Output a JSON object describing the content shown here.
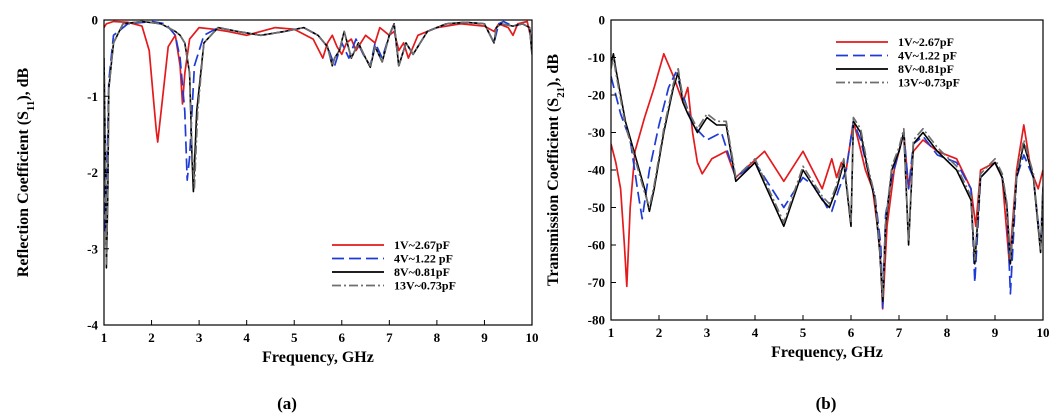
{
  "panel_labels": [
    "(a)",
    "(b)"
  ],
  "chart_data": [
    {
      "type": "line",
      "xlabel": "Frequency, GHz",
      "ylabel_main": "Reflection Coefficient (S",
      "ylabel_sub": "11",
      "ylabel_tail": "), dB",
      "xlim": [
        1,
        10
      ],
      "ylim": [
        -4,
        0
      ],
      "xticks": [
        1,
        2,
        3,
        4,
        5,
        6,
        7,
        8,
        9,
        10
      ],
      "yticks": [
        -4,
        -3,
        -2,
        -1,
        0
      ],
      "legend_position": "bottom-right",
      "series": [
        {
          "name": "1V~2.67pF",
          "color": "#e41a1c",
          "dash": "solid",
          "x": [
            1.0,
            1.05,
            1.2,
            1.5,
            1.8,
            1.95,
            2.05,
            2.1,
            2.13,
            2.2,
            2.35,
            2.5,
            2.6,
            2.65,
            2.7,
            2.8,
            3.0,
            3.3,
            3.6,
            4.0,
            4.3,
            4.6,
            5.0,
            5.4,
            5.6,
            5.7,
            5.8,
            5.9,
            6.0,
            6.1,
            6.2,
            6.3,
            6.5,
            6.7,
            6.8,
            7.0,
            7.1,
            7.2,
            7.3,
            7.4,
            7.6,
            8.0,
            8.5,
            9.0,
            9.2,
            9.3,
            9.5,
            9.6,
            9.7,
            9.9,
            10.0
          ],
          "y": [
            -0.1,
            -0.05,
            -0.02,
            -0.03,
            -0.08,
            -0.4,
            -1.1,
            -1.45,
            -1.6,
            -1.2,
            -0.35,
            -0.2,
            -0.6,
            -1.1,
            -0.7,
            -0.25,
            -0.1,
            -0.12,
            -0.15,
            -0.2,
            -0.15,
            -0.1,
            -0.12,
            -0.25,
            -0.5,
            -0.3,
            -0.2,
            -0.35,
            -0.45,
            -0.3,
            -0.25,
            -0.4,
            -0.2,
            -0.3,
            -0.1,
            -0.2,
            -0.15,
            -0.4,
            -0.3,
            -0.5,
            -0.2,
            -0.1,
            -0.05,
            -0.08,
            -0.15,
            -0.05,
            -0.1,
            -0.2,
            -0.05,
            -0.02,
            -0.3
          ]
        },
        {
          "name": "4V~1.22 pF",
          "color": "#1f3bd6",
          "dash": "long",
          "x": [
            1.0,
            1.03,
            1.07,
            1.1,
            1.2,
            1.5,
            2.0,
            2.3,
            2.5,
            2.6,
            2.7,
            2.75,
            2.8,
            2.9,
            3.1,
            3.4,
            3.8,
            4.3,
            4.8,
            5.2,
            5.5,
            5.7,
            5.85,
            6.0,
            6.15,
            6.3,
            6.45,
            6.6,
            6.7,
            6.85,
            7.0,
            7.1,
            7.2,
            7.35,
            7.5,
            7.8,
            8.2,
            8.6,
            9.0,
            9.2,
            9.3,
            9.4,
            9.6,
            9.8,
            9.95,
            10.0
          ],
          "y": [
            -1.5,
            -2.8,
            -1.8,
            -0.8,
            -0.2,
            -0.05,
            -0.02,
            -0.05,
            -0.2,
            -0.5,
            -1.2,
            -2.1,
            -1.8,
            -0.6,
            -0.2,
            -0.1,
            -0.15,
            -0.2,
            -0.15,
            -0.1,
            -0.2,
            -0.35,
            -0.6,
            -0.3,
            -0.5,
            -0.25,
            -0.45,
            -0.6,
            -0.3,
            -0.5,
            -0.2,
            -0.05,
            -0.6,
            -0.3,
            -0.45,
            -0.15,
            -0.05,
            -0.03,
            -0.05,
            -0.3,
            -0.05,
            -0.02,
            -0.08,
            -0.05,
            -0.1,
            -0.4
          ]
        },
        {
          "name": "8V~0.81pF",
          "color": "#000000",
          "dash": "solid",
          "x": [
            1.0,
            1.03,
            1.05,
            1.08,
            1.1,
            1.2,
            1.4,
            1.8,
            2.2,
            2.5,
            2.6,
            2.7,
            2.8,
            2.85,
            2.88,
            2.95,
            3.1,
            3.4,
            3.8,
            4.3,
            4.8,
            5.2,
            5.5,
            5.7,
            5.8,
            5.85,
            5.95,
            6.05,
            6.2,
            6.35,
            6.5,
            6.6,
            6.7,
            6.85,
            7.0,
            7.1,
            7.2,
            7.35,
            7.5,
            7.8,
            8.2,
            8.6,
            9.0,
            9.2,
            9.25,
            9.35,
            9.6,
            9.8,
            9.95,
            10.0
          ],
          "y": [
            -0.5,
            -1.8,
            -3.25,
            -2.3,
            -0.9,
            -0.3,
            -0.05,
            -0.02,
            -0.05,
            -0.15,
            -0.2,
            -0.3,
            -0.7,
            -1.8,
            -2.25,
            -1.2,
            -0.3,
            -0.1,
            -0.15,
            -0.2,
            -0.15,
            -0.1,
            -0.2,
            -0.35,
            -0.6,
            -0.5,
            -0.4,
            -0.15,
            -0.5,
            -0.3,
            -0.5,
            -0.62,
            -0.35,
            -0.55,
            -0.2,
            -0.05,
            -0.6,
            -0.3,
            -0.45,
            -0.15,
            -0.05,
            -0.03,
            -0.05,
            -0.3,
            -0.1,
            -0.05,
            -0.08,
            -0.05,
            -0.1,
            -0.45
          ]
        },
        {
          "name": "13V~0.73pF",
          "color": "#6e6e6e",
          "dash": "dashdot",
          "x": [
            1.0,
            1.03,
            1.05,
            1.08,
            1.1,
            1.2,
            1.4,
            1.8,
            2.2,
            2.5,
            2.6,
            2.7,
            2.8,
            2.85,
            2.9,
            2.97,
            3.1,
            3.4,
            3.8,
            4.3,
            4.8,
            5.2,
            5.5,
            5.7,
            5.8,
            5.85,
            5.95,
            6.05,
            6.2,
            6.35,
            6.5,
            6.6,
            6.7,
            6.85,
            7.0,
            7.1,
            7.2,
            7.35,
            7.5,
            7.8,
            8.2,
            8.6,
            9.0,
            9.2,
            9.25,
            9.35,
            9.6,
            9.8,
            9.95,
            10.0
          ],
          "y": [
            -0.5,
            -1.7,
            -3.2,
            -2.2,
            -0.9,
            -0.3,
            -0.05,
            -0.02,
            -0.05,
            -0.15,
            -0.2,
            -0.3,
            -0.7,
            -1.7,
            -2.2,
            -1.2,
            -0.3,
            -0.1,
            -0.15,
            -0.2,
            -0.15,
            -0.1,
            -0.2,
            -0.35,
            -0.6,
            -0.5,
            -0.4,
            -0.15,
            -0.5,
            -0.3,
            -0.5,
            -0.6,
            -0.35,
            -0.55,
            -0.2,
            -0.05,
            -0.6,
            -0.3,
            -0.45,
            -0.15,
            -0.05,
            -0.03,
            -0.05,
            -0.3,
            -0.1,
            -0.05,
            -0.08,
            -0.05,
            -0.1,
            -0.45
          ]
        }
      ]
    },
    {
      "type": "line",
      "xlabel": "Frequency, GHz",
      "ylabel_main": "Transmission Coefficient (S",
      "ylabel_sub": "21",
      "ylabel_tail": "), dB",
      "xlim": [
        1,
        10
      ],
      "ylim": [
        -80,
        0
      ],
      "xticks": [
        1,
        2,
        3,
        4,
        5,
        6,
        7,
        8,
        9,
        10
      ],
      "yticks": [
        0,
        -10,
        -20,
        -30,
        -40,
        -50,
        -60,
        -70,
        -80
      ],
      "legend_position": "top-right",
      "series": [
        {
          "name": "1V~2.67pF",
          "color": "#e41a1c",
          "dash": "solid",
          "x": [
            1.0,
            1.1,
            1.2,
            1.28,
            1.33,
            1.4,
            1.5,
            1.7,
            1.9,
            2.1,
            2.3,
            2.5,
            2.6,
            2.7,
            2.8,
            2.9,
            3.1,
            3.4,
            3.6,
            4.2,
            4.6,
            5.0,
            5.4,
            5.6,
            5.7,
            5.8,
            5.9,
            6.05,
            6.15,
            6.3,
            6.45,
            6.6,
            6.66,
            6.75,
            6.9,
            7.0,
            7.1,
            7.2,
            7.3,
            7.5,
            7.8,
            8.2,
            8.5,
            8.6,
            8.7,
            9.0,
            9.15,
            9.3,
            9.45,
            9.6,
            9.75,
            9.9,
            10.0
          ],
          "y": [
            -33,
            -38,
            -45,
            -60,
            -71,
            -50,
            -35,
            -26,
            -18,
            -9,
            -15,
            -22,
            -18,
            -30,
            -38,
            -41,
            -37,
            -35,
            -42,
            -35,
            -43,
            -35,
            -45,
            -37,
            -42,
            -38,
            -40,
            -27,
            -32,
            -40,
            -45,
            -60,
            -77,
            -55,
            -40,
            -35,
            -30,
            -45,
            -35,
            -32,
            -35,
            -37,
            -45,
            -55,
            -40,
            -38,
            -42,
            -65,
            -40,
            -28,
            -40,
            -45,
            -40
          ]
        },
        {
          "name": "4V~1.22 pF",
          "color": "#1f3bd6",
          "dash": "long",
          "x": [
            1.0,
            1.1,
            1.2,
            1.4,
            1.55,
            1.65,
            1.8,
            2.0,
            2.2,
            2.35,
            2.5,
            2.7,
            3.0,
            3.3,
            3.6,
            4.0,
            4.6,
            5.0,
            5.3,
            5.5,
            5.6,
            5.75,
            5.9,
            6.05,
            6.2,
            6.35,
            6.5,
            6.62,
            6.66,
            6.72,
            6.85,
            7.0,
            7.1,
            7.2,
            7.3,
            7.5,
            7.8,
            8.2,
            8.5,
            8.58,
            8.7,
            9.0,
            9.15,
            9.25,
            9.32,
            9.45,
            9.6,
            9.8,
            9.95,
            10.0
          ],
          "y": [
            -15,
            -20,
            -25,
            -32,
            -45,
            -53,
            -40,
            -28,
            -18,
            -14,
            -20,
            -28,
            -32,
            -30,
            -42,
            -38,
            -50,
            -42,
            -45,
            -50,
            -51,
            -45,
            -40,
            -27,
            -32,
            -40,
            -47,
            -60,
            -77,
            -52,
            -42,
            -35,
            -30,
            -45,
            -33,
            -31,
            -36,
            -38,
            -45,
            -70,
            -42,
            -38,
            -42,
            -50,
            -73,
            -42,
            -36,
            -42,
            -60,
            -45
          ]
        },
        {
          "name": "8V~0.81pF",
          "color": "#000000",
          "dash": "solid",
          "x": [
            1.0,
            1.05,
            1.1,
            1.2,
            1.3,
            1.5,
            1.7,
            1.8,
            1.9,
            2.1,
            2.3,
            2.4,
            2.5,
            2.6,
            2.8,
            3.0,
            3.2,
            3.4,
            3.6,
            4.0,
            4.6,
            5.0,
            5.4,
            5.55,
            5.7,
            5.85,
            6.0,
            6.05,
            6.2,
            6.35,
            6.5,
            6.6,
            6.66,
            6.72,
            6.85,
            7.0,
            7.1,
            7.2,
            7.3,
            7.5,
            7.8,
            8.2,
            8.5,
            8.58,
            8.7,
            9.0,
            9.15,
            9.25,
            9.32,
            9.45,
            9.6,
            9.8,
            9.95,
            10.0
          ],
          "y": [
            -12,
            -9,
            -13,
            -20,
            -27,
            -36,
            -45,
            -51,
            -45,
            -30,
            -18,
            -14,
            -22,
            -25,
            -30,
            -26,
            -28,
            -28,
            -43,
            -38,
            -55,
            -40,
            -48,
            -50,
            -45,
            -38,
            -55,
            -27,
            -30,
            -40,
            -48,
            -62,
            -75,
            -55,
            -40,
            -35,
            -30,
            -60,
            -33,
            -30,
            -35,
            -40,
            -48,
            -65,
            -42,
            -38,
            -42,
            -50,
            -65,
            -42,
            -33,
            -42,
            -62,
            -45
          ]
        },
        {
          "name": "13V~0.73pF",
          "color": "#6e6e6e",
          "dash": "dashdot",
          "x": [
            1.0,
            1.05,
            1.1,
            1.2,
            1.3,
            1.5,
            1.7,
            1.8,
            1.9,
            2.1,
            2.3,
            2.4,
            2.5,
            2.6,
            2.8,
            3.0,
            3.2,
            3.4,
            3.6,
            4.0,
            4.6,
            5.0,
            5.4,
            5.55,
            5.7,
            5.85,
            6.0,
            6.05,
            6.2,
            6.35,
            6.5,
            6.6,
            6.66,
            6.72,
            6.85,
            7.0,
            7.1,
            7.2,
            7.3,
            7.5,
            7.8,
            8.2,
            8.5,
            8.58,
            8.7,
            9.0,
            9.15,
            9.25,
            9.32,
            9.45,
            9.6,
            9.8,
            9.95,
            10.0
          ],
          "y": [
            -13,
            -10,
            -14,
            -21,
            -28,
            -37,
            -46,
            -50,
            -44,
            -29,
            -17,
            -13,
            -21,
            -24,
            -29,
            -25,
            -27,
            -27,
            -42,
            -37,
            -54,
            -39,
            -47,
            -49,
            -44,
            -37,
            -54,
            -26,
            -29,
            -39,
            -47,
            -61,
            -74,
            -54,
            -39,
            -34,
            -29,
            -59,
            -32,
            -29,
            -34,
            -39,
            -47,
            -64,
            -41,
            -37,
            -41,
            -49,
            -64,
            -41,
            -32,
            -41,
            -61,
            -44
          ]
        }
      ]
    }
  ]
}
